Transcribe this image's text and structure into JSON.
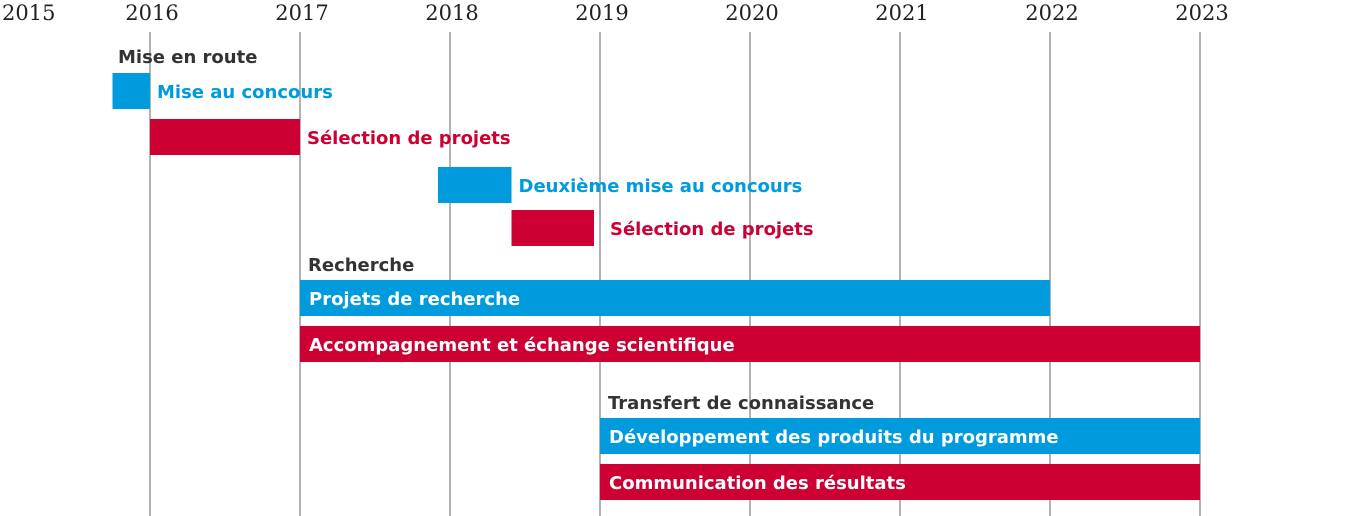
{
  "chart_data": {
    "type": "gantt",
    "x_ticks": [
      2015,
      2016,
      2017,
      2018,
      2019,
      2020,
      2021,
      2022,
      2023
    ],
    "xlim": [
      2015,
      2024
    ],
    "grid": true,
    "colors": {
      "blue": "#009bdc",
      "red": "#cc0033",
      "heading": "#333333",
      "grid": "#8a8a8a"
    },
    "groups": [
      {
        "title": "Mise en route",
        "tasks": [
          {
            "name": "Mise au concours",
            "start": 2015.75,
            "end": 2016.0,
            "color": "blue",
            "label_position": "outside"
          },
          {
            "name": "Sélection de projets",
            "start": 2016.0,
            "end": 2017.0,
            "color": "red",
            "label_position": "outside"
          },
          {
            "name": "Deuxième mise au concours",
            "start": 2017.92,
            "end": 2018.41,
            "color": "blue",
            "label_position": "outside"
          },
          {
            "name": "Sélection de projets",
            "start": 2018.41,
            "end": 2018.96,
            "color": "red",
            "label_position": "outside"
          }
        ]
      },
      {
        "title": "Recherche",
        "tasks": [
          {
            "name": "Projets de recherche",
            "start": 2017.0,
            "end": 2022.0,
            "color": "blue",
            "label_position": "inside"
          },
          {
            "name": "Accompagnement et échange scientifique",
            "start": 2017.0,
            "end": 2023.0,
            "color": "red",
            "label_position": "inside"
          }
        ]
      },
      {
        "title": "Transfert de connaissance",
        "tasks": [
          {
            "name": "Développement des produits du programme",
            "start": 2019.0,
            "end": 2023.0,
            "color": "blue",
            "label_position": "inside"
          },
          {
            "name": "Communication des résultats",
            "start": 2019.0,
            "end": 2023.0,
            "color": "red",
            "label_position": "inside"
          }
        ]
      }
    ]
  }
}
